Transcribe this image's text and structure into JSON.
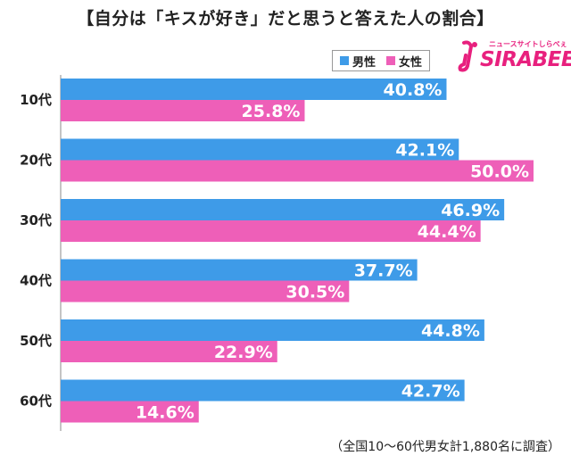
{
  "title": "【自分は「キスが好き」だと思うと答えた人の割合】",
  "legend": [
    {
      "label": "男性",
      "color": "#3e9be8"
    },
    {
      "label": "女性",
      "color": "#ee5fb8"
    }
  ],
  "logo": {
    "tagline": "ニュースサイトしらべぇ",
    "wordmark": "SIRABEE",
    "color": "#e8207e"
  },
  "footnote": "（全国10～60代男女計1,880名に調査）",
  "chart_data": {
    "type": "bar",
    "orientation": "horizontal",
    "categories": [
      "10代",
      "20代",
      "30代",
      "40代",
      "50代",
      "60代"
    ],
    "series": [
      {
        "name": "男性",
        "color": "#3e9be8",
        "values": [
          40.8,
          42.1,
          46.9,
          37.7,
          44.8,
          42.7
        ]
      },
      {
        "name": "女性",
        "color": "#ee5fb8",
        "values": [
          25.8,
          50.0,
          44.4,
          30.5,
          22.9,
          14.6
        ]
      }
    ],
    "value_format": "%",
    "xlim": [
      0,
      50
    ],
    "grid": false,
    "legend_position": "top-right"
  }
}
